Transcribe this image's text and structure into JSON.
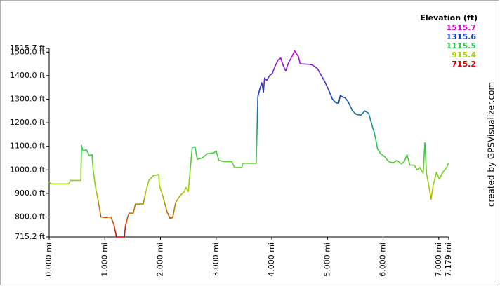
{
  "chart_data": {
    "type": "line",
    "x": [
      0,
      0.03,
      0.35,
      0.38,
      0.57,
      0.58,
      0.61,
      0.67,
      0.72,
      0.77,
      0.79,
      0.83,
      0.88,
      0.93,
      1.01,
      1.11,
      1.16,
      1.21,
      1.35,
      1.37,
      1.41,
      1.44,
      1.51,
      1.55,
      1.69,
      1.74,
      1.79,
      1.87,
      1.97,
      1.98,
      2.04,
      2.12,
      2.17,
      2.22,
      2.27,
      2.35,
      2.42,
      2.46,
      2.5,
      2.57,
      2.62,
      2.66,
      2.75,
      2.84,
      2.9,
      2.96,
      3.0,
      3.05,
      3.15,
      3.28,
      3.33,
      3.46,
      3.48,
      3.72,
      3.75,
      3.78,
      3.82,
      3.85,
      3.87,
      3.91,
      3.96,
      4.01,
      4.06,
      4.11,
      4.16,
      4.21,
      4.25,
      4.3,
      4.36,
      4.41,
      4.48,
      4.51,
      4.67,
      4.73,
      4.82,
      4.89,
      4.94,
      5.02,
      5.09,
      5.15,
      5.2,
      5.23,
      5.32,
      5.37,
      5.45,
      5.52,
      5.6,
      5.67,
      5.74,
      5.8,
      5.85,
      5.9,
      5.95,
      6.03,
      6.1,
      6.18,
      6.25,
      6.33,
      6.38,
      6.43,
      6.48,
      6.56,
      6.61,
      6.66,
      6.72,
      6.75,
      6.78,
      6.83,
      6.86,
      6.9,
      6.96,
      7.01,
      7.06,
      7.14,
      7.179
    ],
    "values": [
      949,
      940,
      940,
      955,
      955,
      1104,
      1080,
      1085,
      1060,
      1065,
      1000,
      930,
      870,
      800,
      797,
      800,
      770,
      715.2,
      715.2,
      760,
      800,
      816,
      816,
      855,
      855,
      910,
      955,
      975,
      980,
      935,
      890,
      820,
      795,
      797,
      860,
      890,
      905,
      925,
      908,
      1095,
      1098,
      1045,
      1050,
      1068,
      1070,
      1072,
      1080,
      1040,
      1035,
      1035,
      1010,
      1010,
      1028,
      1028,
      1310,
      1340,
      1370,
      1330,
      1390,
      1380,
      1400,
      1410,
      1440,
      1465,
      1475,
      1440,
      1420,
      1455,
      1480,
      1505,
      1480,
      1450,
      1448,
      1445,
      1430,
      1400,
      1380,
      1340,
      1300,
      1285,
      1283,
      1315,
      1305,
      1290,
      1250,
      1235,
      1232,
      1250,
      1240,
      1190,
      1150,
      1090,
      1070,
      1055,
      1035,
      1030,
      1040,
      1025,
      1035,
      1065,
      1020,
      1020,
      1000,
      1010,
      985,
      1115,
      985,
      920,
      875,
      935,
      990,
      960,
      985,
      1010,
      1030
    ],
    "xlim": [
      0,
      7.179
    ],
    "xticks": [
      {
        "value": 0,
        "label": "0.000 mi"
      },
      {
        "value": 1,
        "label": "1.000 mi"
      },
      {
        "value": 2,
        "label": "2.000 mi"
      },
      {
        "value": 3,
        "label": "3.000 mi"
      },
      {
        "value": 4,
        "label": "4.000 mi"
      },
      {
        "value": 5,
        "label": "5.000 mi"
      },
      {
        "value": 6,
        "label": "6.000 mi"
      },
      {
        "value": 7,
        "label": "7.000 mi"
      },
      {
        "value": 7.179,
        "label": "7.179 mi"
      }
    ],
    "ylim": [
      715.2,
      1515.7
    ],
    "yticks": [
      {
        "value": 715.2,
        "label": "715.2 ft"
      },
      {
        "value": 800,
        "label": "800.0 ft"
      },
      {
        "value": 900,
        "label": "900.0 ft"
      },
      {
        "value": 1000,
        "label": "1000.0 ft"
      },
      {
        "value": 1100,
        "label": "1100.0 ft"
      },
      {
        "value": 1200,
        "label": "1200.0 ft"
      },
      {
        "value": 1300,
        "label": "1300.0 ft"
      },
      {
        "value": 1400,
        "label": "1400.0 ft"
      },
      {
        "value": 1500,
        "label": "1500.0 ft"
      },
      {
        "value": 1515.7,
        "label": "1515.7 ft"
      }
    ],
    "grid": false,
    "legend": {
      "title": "Elevation (ft)",
      "entries": [
        {
          "value": 1515.7,
          "color": "#dd00dd"
        },
        {
          "value": 1315.6,
          "color": "#1040c8"
        },
        {
          "value": 1115.5,
          "color": "#22cc55"
        },
        {
          "value": 915.4,
          "color": "#a8d000"
        },
        {
          "value": 715.2,
          "color": "#dd0000"
        }
      ]
    },
    "credit": "created by GPSVisualizer.com"
  }
}
